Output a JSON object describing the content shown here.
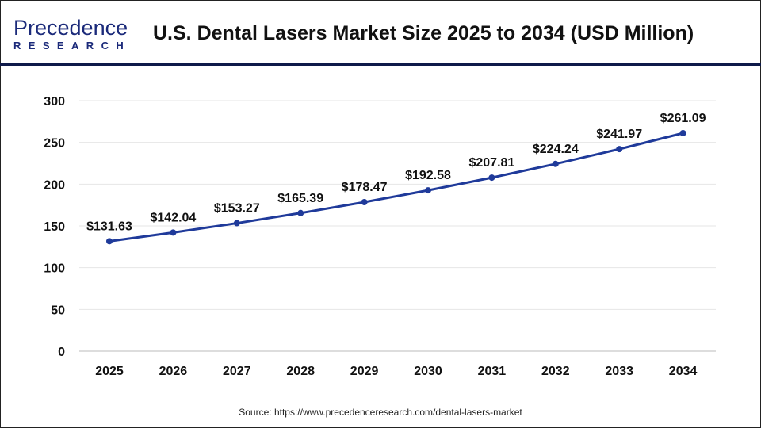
{
  "header": {
    "logo_text_top": "Precedence",
    "logo_text_bottom": "RESEARCH",
    "title": "U.S. Dental Lasers Market Size 2025 to 2034 (USD Million)"
  },
  "source": "Source: https://www.precedenceresearch.com/dental-lasers-market",
  "chart_data": {
    "type": "line",
    "title": "U.S. Dental Lasers Market Size 2025 to 2034 (USD Million)",
    "categories": [
      "2025",
      "2026",
      "2027",
      "2028",
      "2029",
      "2030",
      "2031",
      "2032",
      "2033",
      "2034"
    ],
    "values": [
      131.63,
      142.04,
      153.27,
      165.39,
      178.47,
      192.58,
      207.81,
      224.24,
      241.97,
      261.09
    ],
    "data_labels": [
      "$131.63",
      "$142.04",
      "$153.27",
      "$165.39",
      "$178.47",
      "$192.58",
      "$207.81",
      "$224.24",
      "$241.97",
      "$261.09"
    ],
    "ylim": [
      0,
      300
    ],
    "yticks": [
      0,
      50,
      100,
      150,
      200,
      250,
      300
    ],
    "grid": true,
    "line_color": "#1f3a9a",
    "xlabel": "",
    "ylabel": ""
  }
}
